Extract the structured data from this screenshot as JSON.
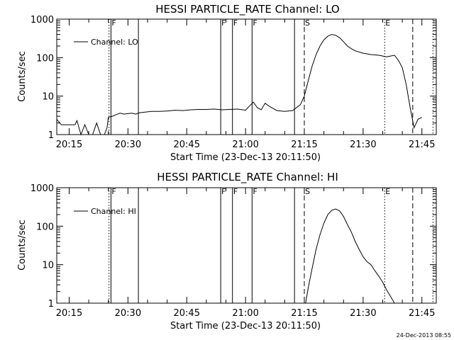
{
  "chart_data": [
    {
      "type": "line",
      "title": "HESSI PARTICLE_RATE Channel: LO",
      "xlabel": "Start Time (23-Dec-13 20:11:50)",
      "ylabel": "Counts/sec",
      "yscale": "log",
      "ylim": [
        1,
        1000
      ],
      "yticks": [
        "1",
        "10",
        "100",
        "1000"
      ],
      "x_unit": "minutes",
      "xlim": [
        "20:11:50",
        "21:48:40"
      ],
      "xticks": [
        "20:15",
        "20:30",
        "20:45",
        "21:00",
        "21:15",
        "21:30",
        "21:45"
      ],
      "legend": "top-left",
      "series": [
        {
          "name": "Channel: LO",
          "x": [
            "20:11:50",
            "20:13:00",
            "20:14:00",
            "20:15:30",
            "20:16:30",
            "20:17:00",
            "20:18:00",
            "20:19:00",
            "20:20:00",
            "20:21:00",
            "20:22:00",
            "20:23:00",
            "20:24:00",
            "20:24:40",
            "20:25:00",
            "20:26:00",
            "20:27:00",
            "20:28:00",
            "20:29:00",
            "20:30:00",
            "20:31:00",
            "20:32:00",
            "20:33:00",
            "20:34:00",
            "20:36:00",
            "20:38:00",
            "20:40:00",
            "20:42:00",
            "20:44:00",
            "20:46:00",
            "20:48:00",
            "20:50:00",
            "20:52:00",
            "20:54:00",
            "20:56:00",
            "20:58:00",
            "21:00:00",
            "21:01:00",
            "21:02:00",
            "21:03:00",
            "21:04:00",
            "21:05:00",
            "21:06:00",
            "21:08:00",
            "21:10:00",
            "21:12:00",
            "21:14:00",
            "21:15:00",
            "21:16:00",
            "21:17:00",
            "21:18:00",
            "21:19:00",
            "21:20:00",
            "21:21:00",
            "21:22:00",
            "21:23:00",
            "21:24:00",
            "21:25:00",
            "21:26:00",
            "21:27:00",
            "21:28:00",
            "21:30:00",
            "21:32:00",
            "21:34:00",
            "21:35:00",
            "21:36:00",
            "21:37:00",
            "21:38:00",
            "21:39:00",
            "21:40:00",
            "21:41:00",
            "21:42:00",
            "21:43:00",
            "21:44:00",
            "21:45:00"
          ],
          "y": [
            2.5,
            1.8,
            1.8,
            1.8,
            1.8,
            2.3,
            1.0,
            1.8,
            1.0,
            1.0,
            2.0,
            1.0,
            1.0,
            1.5,
            2.8,
            3.0,
            3.3,
            3.6,
            3.4,
            3.5,
            3.6,
            3.4,
            3.7,
            3.8,
            4.0,
            4.0,
            4.1,
            4.3,
            4.2,
            4.4,
            4.5,
            4.5,
            4.6,
            4.4,
            4.5,
            4.6,
            4.3,
            5.5,
            7.0,
            5.0,
            4.4,
            6.5,
            5.5,
            4.2,
            4.0,
            4.2,
            6.0,
            10,
            25,
            60,
            120,
            200,
            290,
            360,
            400,
            380,
            330,
            260,
            200,
            170,
            150,
            130,
            120,
            115,
            110,
            105,
            110,
            115,
            85,
            55,
            20,
            5,
            1.5,
            2.5,
            2.8
          ]
        }
      ],
      "vlines": [
        {
          "x": "20:25:10",
          "style": "dotted",
          "label": ""
        },
        {
          "x": "20:25:40",
          "style": "solid",
          "label": "F"
        },
        {
          "x": "20:32:40",
          "style": "solid",
          "label": ""
        },
        {
          "x": "20:53:40",
          "style": "solid",
          "label": "F"
        },
        {
          "x": "20:56:40",
          "style": "solid",
          "label": "F"
        },
        {
          "x": "21:01:40",
          "style": "solid",
          "label": "F"
        },
        {
          "x": "21:12:30",
          "style": "solid",
          "label": ""
        },
        {
          "x": "21:15:00",
          "style": "dashed",
          "label": "S"
        },
        {
          "x": "21:35:30",
          "style": "dotted",
          "label": "E"
        },
        {
          "x": "21:42:40",
          "style": "dashed",
          "label": ""
        },
        {
          "x": "21:47:50",
          "style": "dotted",
          "label": ""
        }
      ]
    },
    {
      "type": "line",
      "title": "HESSI PARTICLE_RATE Channel: HI",
      "xlabel": "Start Time (23-Dec-13 20:11:50)",
      "ylabel": "Counts/sec",
      "yscale": "log",
      "ylim": [
        1,
        1000
      ],
      "yticks": [
        "1",
        "10",
        "100",
        "1000"
      ],
      "x_unit": "minutes",
      "xlim": [
        "20:11:50",
        "21:48:40"
      ],
      "xticks": [
        "20:15",
        "20:30",
        "20:45",
        "21:00",
        "21:15",
        "21:30",
        "21:45"
      ],
      "legend": "top-left",
      "series": [
        {
          "name": "Channel: HI",
          "x": [
            "21:15:20",
            "21:16:00",
            "21:17:00",
            "21:18:00",
            "21:19:00",
            "21:20:00",
            "21:21:00",
            "21:22:00",
            "21:23:00",
            "21:24:00",
            "21:25:00",
            "21:26:00",
            "21:27:00",
            "21:28:00",
            "21:29:00",
            "21:30:00",
            "21:31:00",
            "21:32:00",
            "21:33:00",
            "21:34:00",
            "21:35:00",
            "21:36:00",
            "21:37:00",
            "21:38:00"
          ],
          "y": [
            1.0,
            2.5,
            8,
            25,
            60,
            120,
            200,
            260,
            280,
            250,
            180,
            110,
            70,
            40,
            25,
            16,
            12,
            10,
            7,
            5,
            3.5,
            2.2,
            1.5,
            1.0
          ]
        }
      ],
      "vlines": [
        {
          "x": "20:25:10",
          "style": "dotted",
          "label": ""
        },
        {
          "x": "20:25:40",
          "style": "solid",
          "label": "F"
        },
        {
          "x": "20:32:40",
          "style": "solid",
          "label": ""
        },
        {
          "x": "20:53:40",
          "style": "solid",
          "label": "F"
        },
        {
          "x": "20:56:40",
          "style": "solid",
          "label": "F"
        },
        {
          "x": "21:01:40",
          "style": "solid",
          "label": "F"
        },
        {
          "x": "21:12:30",
          "style": "solid",
          "label": ""
        },
        {
          "x": "21:15:00",
          "style": "dashed",
          "label": "S"
        },
        {
          "x": "21:35:30",
          "style": "dotted",
          "label": "E"
        },
        {
          "x": "21:42:40",
          "style": "dashed",
          "label": ""
        },
        {
          "x": "21:47:50",
          "style": "dotted",
          "label": ""
        }
      ]
    }
  ],
  "footer": {
    "timestamp": "24-Dec-2013 08:55"
  }
}
